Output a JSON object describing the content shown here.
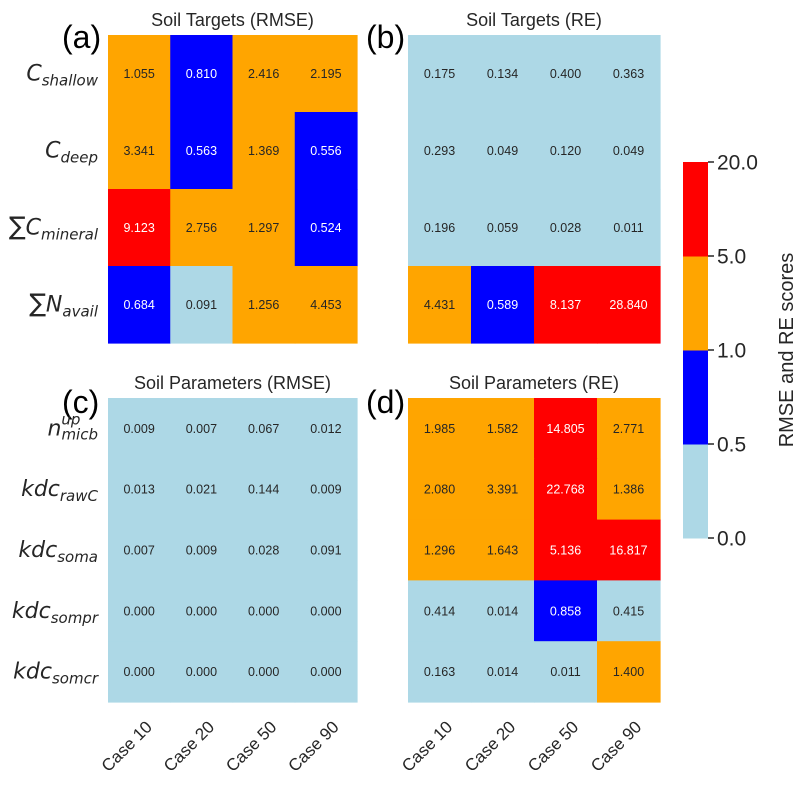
{
  "chart_data": [
    {
      "type": "heatmap",
      "panel_label": "(a)",
      "title": "Soil Targets (RMSE)",
      "rows": [
        {
          "base": "C",
          "sub": "shallow",
          "sup": "",
          "sum": false
        },
        {
          "base": "C",
          "sub": "deep",
          "sup": "",
          "sum": false
        },
        {
          "base": "C",
          "sub": "mineral",
          "sup": "",
          "sum": true
        },
        {
          "base": "N",
          "sub": "avail",
          "sup": "",
          "sum": true
        }
      ],
      "columns": [
        "Case 10",
        "Case 20",
        "Case 50",
        "Case 90"
      ],
      "values": [
        [
          "1.055",
          "0.810",
          "2.416",
          "2.195"
        ],
        [
          "3.341",
          "0.563",
          "1.369",
          "0.556"
        ],
        [
          "9.123",
          "2.756",
          "1.297",
          "0.524"
        ],
        [
          "0.684",
          "0.091",
          "1.256",
          "4.453"
        ]
      ]
    },
    {
      "type": "heatmap",
      "panel_label": "(b)",
      "title": "Soil Targets (RE)",
      "rows": [
        {
          "base": "C",
          "sub": "shallow",
          "sup": "",
          "sum": false
        },
        {
          "base": "C",
          "sub": "deep",
          "sup": "",
          "sum": false
        },
        {
          "base": "C",
          "sub": "mineral",
          "sup": "",
          "sum": true
        },
        {
          "base": "N",
          "sub": "avail",
          "sup": "",
          "sum": true
        }
      ],
      "columns": [
        "Case 10",
        "Case 20",
        "Case 50",
        "Case 90"
      ],
      "values": [
        [
          "0.175",
          "0.134",
          "0.400",
          "0.363"
        ],
        [
          "0.293",
          "0.049",
          "0.120",
          "0.049"
        ],
        [
          "0.196",
          "0.059",
          "0.028",
          "0.011"
        ],
        [
          "4.431",
          "0.589",
          "8.137",
          "28.840"
        ]
      ]
    },
    {
      "type": "heatmap",
      "panel_label": "(c)",
      "title": "Soil Parameters (RMSE)",
      "rows": [
        {
          "base": "n",
          "sub": "micb",
          "sup": "up",
          "sum": false
        },
        {
          "base": "kdc",
          "sub": "rawC",
          "sup": "",
          "sum": false
        },
        {
          "base": "kdc",
          "sub": "soma",
          "sup": "",
          "sum": false
        },
        {
          "base": "kdc",
          "sub": "sompr",
          "sup": "",
          "sum": false
        },
        {
          "base": "kdc",
          "sub": "somcr",
          "sup": "",
          "sum": false
        }
      ],
      "columns": [
        "Case 10",
        "Case 20",
        "Case 50",
        "Case 90"
      ],
      "values": [
        [
          "0.009",
          "0.007",
          "0.067",
          "0.012"
        ],
        [
          "0.013",
          "0.021",
          "0.144",
          "0.009"
        ],
        [
          "0.007",
          "0.009",
          "0.028",
          "0.091"
        ],
        [
          "0.000",
          "0.000",
          "0.000",
          "0.000"
        ],
        [
          "0.000",
          "0.000",
          "0.000",
          "0.000"
        ]
      ]
    },
    {
      "type": "heatmap",
      "panel_label": "(d)",
      "title": "Soil Parameters (RE)",
      "rows": [
        {
          "base": "n",
          "sub": "micb",
          "sup": "up",
          "sum": false
        },
        {
          "base": "kdc",
          "sub": "rawC",
          "sup": "",
          "sum": false
        },
        {
          "base": "kdc",
          "sub": "soma",
          "sup": "",
          "sum": false
        },
        {
          "base": "kdc",
          "sub": "sompr",
          "sup": "",
          "sum": false
        },
        {
          "base": "kdc",
          "sub": "somcr",
          "sup": "",
          "sum": false
        }
      ],
      "columns": [
        "Case 10",
        "Case 20",
        "Case 50",
        "Case 90"
      ],
      "values": [
        [
          "1.985",
          "1.582",
          "14.805",
          "2.771"
        ],
        [
          "2.080",
          "3.391",
          "22.768",
          "1.386"
        ],
        [
          "1.296",
          "1.643",
          "5.136",
          "16.817"
        ],
        [
          "0.414",
          "0.014",
          "0.858",
          "0.415"
        ],
        [
          "0.163",
          "0.014",
          "0.011",
          "1.400"
        ]
      ]
    }
  ],
  "colorbar": {
    "label": "RMSE and RE scores",
    "bounds": [
      0.0,
      0.5,
      1.0,
      5.0,
      20.0
    ],
    "tick_labels": [
      "0.0",
      "0.5",
      "1.0",
      "5.0",
      "20.0"
    ],
    "colors": [
      "#add8e6",
      "#0000ff",
      "#ffa500",
      "#ff0000"
    ]
  },
  "colors": {
    "text_dark": "#262626",
    "text_light": "#ffffff"
  }
}
